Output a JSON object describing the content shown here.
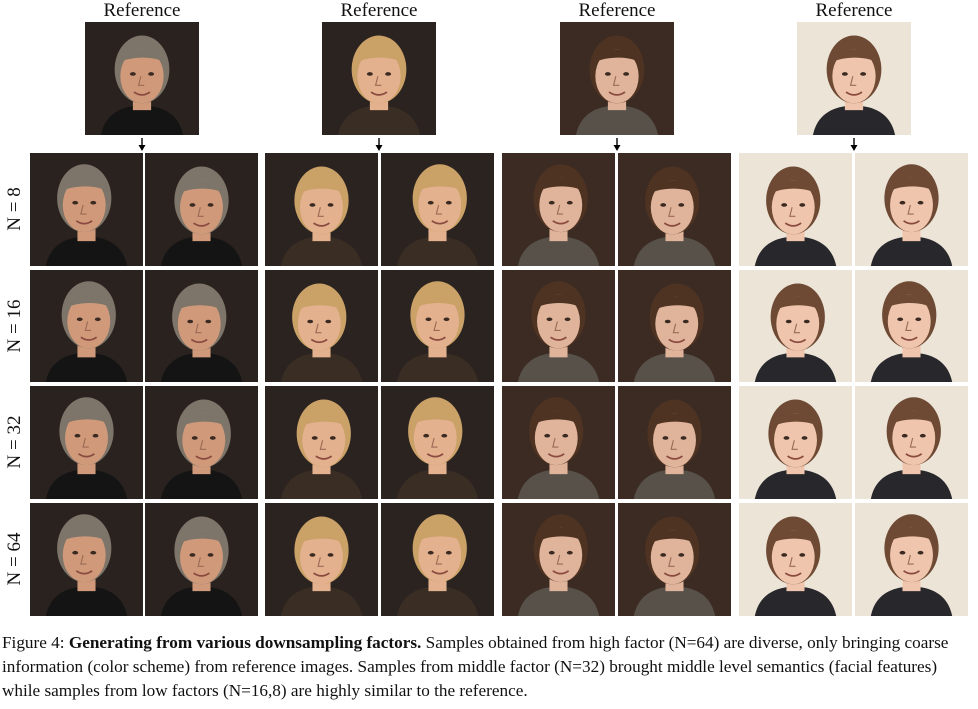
{
  "figure": {
    "reference_label": "Reference",
    "row_labels": [
      "N = 8",
      "N = 16",
      "N = 32",
      "N = 64"
    ],
    "subjects": [
      {
        "id": "a",
        "bg": "#2a221e",
        "skin": "#d09a7a",
        "hair": "#7d7569",
        "clothes": "#141414"
      },
      {
        "id": "b",
        "bg": "#2b2320",
        "skin": "#e3b18e",
        "hair": "#caa167",
        "clothes": "#3a2d24"
      },
      {
        "id": "c",
        "bg": "#3b2b22",
        "skin": "#e0b49a",
        "hair": "#4e3222",
        "clothes": "#57514a"
      },
      {
        "id": "d",
        "bg": "#ece4d7",
        "skin": "#efc6ad",
        "hair": "#6e4a34",
        "clothes": "#27272c"
      }
    ]
  },
  "caption": {
    "prefix": "Figure 4: ",
    "bold": "Generating from various downsampling factors.",
    "text": " Samples obtained from high factor (N=64) are diverse, only bringing coarse information (color scheme) from reference images. Samples from middle factor (N=32) brought middle level semantics (facial features) while samples from low factors (N=16,8) are highly similar to the reference."
  }
}
